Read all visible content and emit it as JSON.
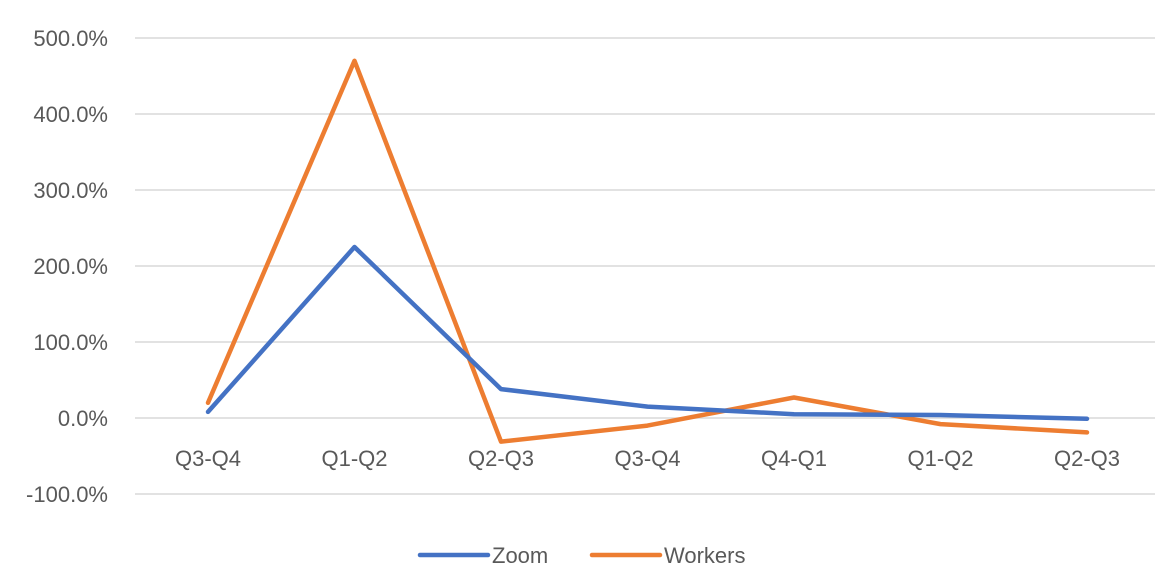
{
  "chart_data": {
    "type": "line",
    "title": "",
    "xlabel": "",
    "ylabel": "",
    "categories": [
      "Q3-Q4",
      "Q1-Q2",
      "Q2-Q3",
      "Q3-Q4",
      "Q4-Q1",
      "Q1-Q2",
      "Q2-Q3"
    ],
    "ylim": [
      -100,
      500
    ],
    "yticks": [
      500,
      400,
      300,
      200,
      100,
      0,
      -100
    ],
    "ytick_labels": [
      "500.0%",
      "400.0%",
      "300.0%",
      "200.0%",
      "100.0%",
      "0.0%",
      "-100.0%"
    ],
    "grid": true,
    "legend_position": "bottom",
    "series": [
      {
        "name": "Zoom",
        "color": "#4472C4",
        "values": [
          8,
          225,
          38,
          15,
          5,
          4,
          -1
        ]
      },
      {
        "name": "Workers",
        "color": "#ED7D31",
        "values": [
          20,
          470,
          -31,
          -10,
          27,
          -8,
          -19
        ]
      }
    ]
  }
}
